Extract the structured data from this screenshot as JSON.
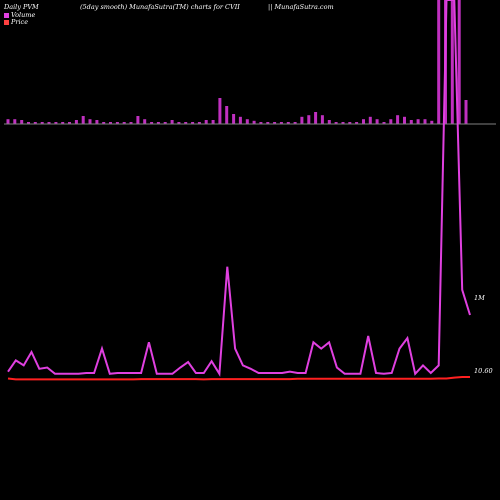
{
  "header": {
    "left": "Daily PVM",
    "middle": "(5day smooth) MunafaSutra(TM) charts for CVII",
    "right": "|| MunafaSutra.com"
  },
  "legend": [
    {
      "label": "Volume",
      "color": "#e040e0"
    },
    {
      "label": "Price",
      "color": "#ff4040"
    }
  ],
  "colors": {
    "background": "#000000",
    "volume_bar": "#c030c0",
    "pvm_line": "#e040e0",
    "price_line": "#ff2020",
    "baseline": "#808080"
  },
  "chart_data": {
    "type": "bar",
    "volume_bars": [
      0.12,
      0.12,
      0.1,
      0.05,
      0.05,
      0.05,
      0.05,
      0.05,
      0.05,
      0.05,
      0.1,
      0.2,
      0.12,
      0.1,
      0.05,
      0.05,
      0.05,
      0.05,
      0.05,
      0.2,
      0.12,
      0.05,
      0.05,
      0.05,
      0.1,
      0.05,
      0.05,
      0.05,
      0.05,
      0.1,
      0.1,
      0.65,
      0.45,
      0.25,
      0.18,
      0.12,
      0.08,
      0.05,
      0.05,
      0.05,
      0.05,
      0.05,
      0.05,
      0.18,
      0.22,
      0.3,
      0.22,
      0.1,
      0.05,
      0.05,
      0.05,
      0.05,
      0.12,
      0.18,
      0.12,
      0.05,
      0.12,
      0.22,
      0.18,
      0.1,
      0.12,
      0.12,
      0.08,
      10.0,
      10.0,
      10.0,
      8.0,
      0.6
    ],
    "pvm_line": [
      0.15,
      0.42,
      0.3,
      0.62,
      0.22,
      0.25,
      0.1,
      0.1,
      0.1,
      0.1,
      0.12,
      0.12,
      0.7,
      0.1,
      0.12,
      0.12,
      0.12,
      0.12,
      0.85,
      0.1,
      0.1,
      0.1,
      0.25,
      0.38,
      0.12,
      0.12,
      0.4,
      0.1,
      2.65,
      0.7,
      0.3,
      0.22,
      0.12,
      0.12,
      0.12,
      0.12,
      0.15,
      0.12,
      0.12,
      0.85,
      0.7,
      0.85,
      0.25,
      0.1,
      0.1,
      0.1,
      1.0,
      0.12,
      0.1,
      0.12,
      0.7,
      0.95,
      0.1,
      0.3,
      0.12,
      0.3,
      11.0,
      11.0,
      2.1,
      1.5
    ],
    "price_line": [
      0.05,
      0.02,
      0.02,
      0.02,
      0.02,
      0.02,
      0.02,
      0.02,
      0.02,
      0.02,
      0.02,
      0.02,
      0.02,
      0.02,
      0.02,
      0.02,
      0.02,
      0.03,
      0.03,
      0.03,
      0.03,
      0.03,
      0.03,
      0.03,
      0.03,
      0.02,
      0.03,
      0.03,
      0.03,
      0.03,
      0.03,
      0.03,
      0.03,
      0.03,
      0.03,
      0.03,
      0.03,
      0.04,
      0.04,
      0.04,
      0.04,
      0.04,
      0.04,
      0.04,
      0.04,
      0.04,
      0.04,
      0.04,
      0.04,
      0.04,
      0.04,
      0.04,
      0.04,
      0.04,
      0.04,
      0.05,
      0.05,
      0.08,
      0.1,
      0.1
    ],
    "right_labels": [
      "1M",
      "10.60"
    ]
  }
}
